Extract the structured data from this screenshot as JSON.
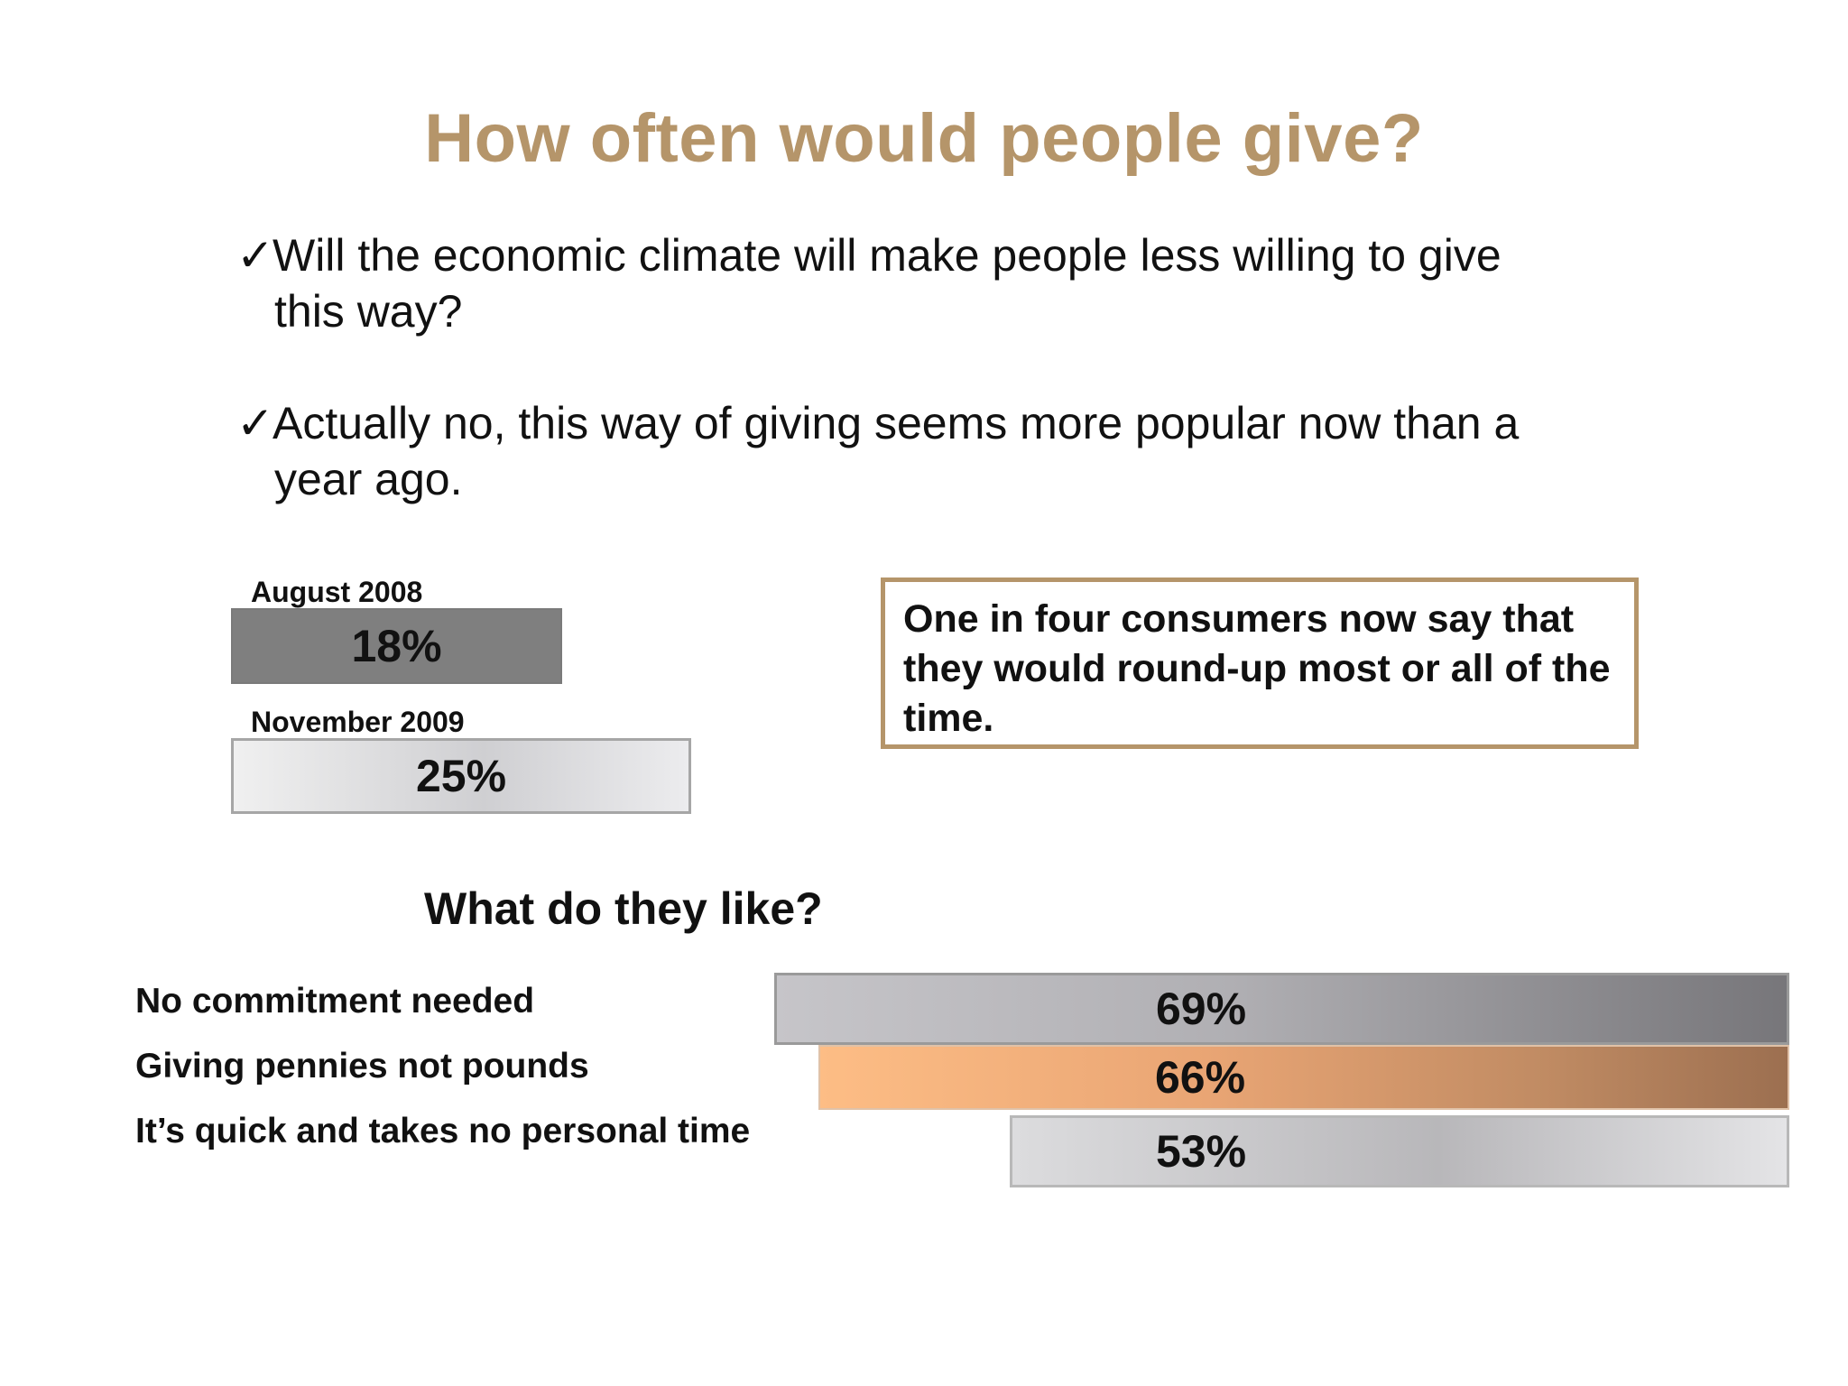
{
  "title": "How often would people give?",
  "bullets": [
    {
      "icon": "check-icon",
      "line1": "Will the economic climate will make people less willing to give",
      "line2": "this way?"
    },
    {
      "icon": "check-icon",
      "line1": "Actually no, this way of giving seems more popular now than a",
      "line2": "year ago."
    }
  ],
  "callout": {
    "text": "One in four consumers now say that they would round-up most or all of the time.",
    "border_color": "#b5956a"
  },
  "colors": {
    "title": "#b5956a",
    "august_bar": "#7f7f7f",
    "november_bar": "#d9d9db",
    "no_commitment_bar": "#8b8a8e",
    "pennies_bar": "#e9a574",
    "quick_bar": "#c4c3c6"
  },
  "chart_data": [
    {
      "type": "bar",
      "orientation": "horizontal",
      "categories": [
        "August 2008",
        "November 2009"
      ],
      "values": [
        18,
        25
      ],
      "value_labels": [
        "18%",
        "25%"
      ],
      "unit": "%"
    },
    {
      "type": "bar",
      "orientation": "horizontal",
      "title": "What do they like?",
      "categories": [
        "No commitment needed",
        "Giving pennies not pounds",
        "It’s quick and takes no personal time"
      ],
      "values": [
        69,
        66,
        53
      ],
      "value_labels": [
        "69%",
        "66%",
        "53%"
      ],
      "unit": "%",
      "bar_alignment": "right"
    }
  ]
}
